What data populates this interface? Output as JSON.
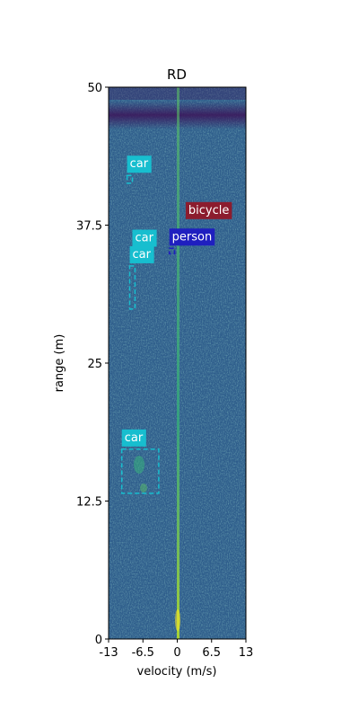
{
  "chart_data": {
    "type": "heatmap",
    "title": "RD",
    "xlabel": "velocity (m/s)",
    "ylabel": "range (m)",
    "xlim": [
      -13,
      13
    ],
    "ylim": [
      0,
      50
    ],
    "x_ticks": [
      {
        "value": -13,
        "label": "-13"
      },
      {
        "value": -6.5,
        "label": "-6.5"
      },
      {
        "value": 0,
        "label": "0"
      },
      {
        "value": 6.5,
        "label": "6.5"
      },
      {
        "value": 13,
        "label": "13"
      }
    ],
    "y_ticks": [
      {
        "value": 0,
        "label": "0"
      },
      {
        "value": 12.5,
        "label": "12.5"
      },
      {
        "value": 25,
        "label": "25"
      },
      {
        "value": 37.5,
        "label": "37.5"
      },
      {
        "value": 50,
        "label": "50"
      }
    ],
    "colormap": "viridis",
    "background_color": "#2f5e8c",
    "annotations": [
      {
        "label": "car",
        "color": "#17becf",
        "vmin": -9.5,
        "vmax": -8.5,
        "rmin": 41.3,
        "rmax": 42.0
      },
      {
        "label": "bicycle",
        "color": "#8c1c2e",
        "vmin": 1.6,
        "vmax": 1.6,
        "rmin": 37.8,
        "rmax": 37.8
      },
      {
        "label": "person",
        "color": "#1f1fbf",
        "vmin": -1.5,
        "vmax": -0.5,
        "rmin": 34.9,
        "rmax": 35.4
      },
      {
        "label": "car",
        "color": "#17becf",
        "vmin": -8.5,
        "vmax": -8.5,
        "rmin": 35.3,
        "rmax": 35.3
      },
      {
        "label": "car",
        "color": "#17becf",
        "vmin": -9.0,
        "vmax": -8.0,
        "rmin": 29.9,
        "rmax": 33.8
      },
      {
        "label": "car",
        "color": "#17becf",
        "vmin": -10.5,
        "vmax": -3.5,
        "rmin": 13.2,
        "rmax": 17.2
      }
    ]
  }
}
